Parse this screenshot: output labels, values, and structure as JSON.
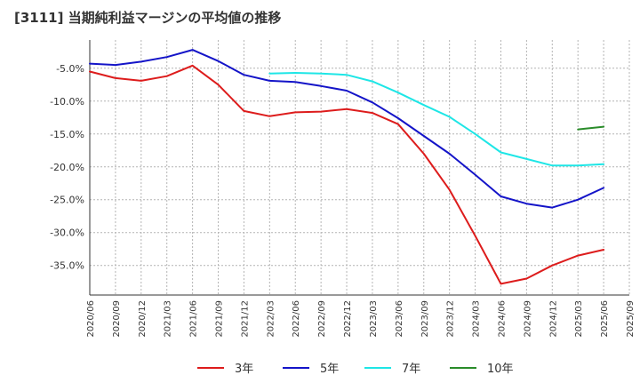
{
  "chart_data": {
    "type": "line",
    "title": "[3111]  当期純利益マージンの平均値の推移",
    "xlabel": "",
    "ylabel": "",
    "ylim": [
      -40,
      0
    ],
    "yticks": [
      -5,
      -10,
      -15,
      -20,
      -25,
      -30,
      -35
    ],
    "ytick_labels": [
      "-5.0%",
      "-10.0%",
      "-15.0%",
      "-20.0%",
      "-25.0%",
      "-30.0%",
      "-35.0%"
    ],
    "grid": true,
    "legend_position": "bottom",
    "categories": [
      "2020/06",
      "2020/09",
      "2020/12",
      "2021/03",
      "2021/06",
      "2021/09",
      "2021/12",
      "2022/03",
      "2022/06",
      "2022/09",
      "2022/12",
      "2023/03",
      "2023/06",
      "2023/09",
      "2023/12",
      "2024/03",
      "2024/06",
      "2024/09",
      "2024/12",
      "2025/03",
      "2025/06",
      "2025/09"
    ],
    "series": [
      {
        "name": "3年",
        "color": "#dd1c1c",
        "values": [
          -5.5,
          -6.5,
          -6.9,
          -6.2,
          -4.6,
          -7.5,
          -11.5,
          -12.3,
          -11.7,
          -11.6,
          -11.2,
          -11.8,
          -13.5,
          -18.0,
          -23.5,
          -30.5,
          -37.8,
          -37.0,
          -35.0,
          -33.5,
          -32.6,
          null
        ]
      },
      {
        "name": "5年",
        "color": "#1414c8",
        "values": [
          -4.3,
          -4.5,
          -4.0,
          -3.3,
          -2.2,
          -3.9,
          -6.0,
          -6.9,
          -7.1,
          -7.7,
          -8.4,
          -10.2,
          -12.6,
          -15.3,
          -18.0,
          -21.2,
          -24.5,
          -25.6,
          -26.2,
          -25.0,
          -23.2,
          null
        ]
      },
      {
        "name": "7年",
        "color": "#1ee6e6",
        "values": [
          null,
          null,
          null,
          null,
          null,
          null,
          null,
          -5.8,
          -5.7,
          -5.8,
          -6.0,
          -7.0,
          -8.7,
          -10.6,
          -12.4,
          -15.0,
          -17.8,
          -18.8,
          -19.8,
          -19.8,
          -19.6,
          null
        ]
      },
      {
        "name": "10年",
        "color": "#2a8c2a",
        "values": [
          null,
          null,
          null,
          null,
          null,
          null,
          null,
          null,
          null,
          null,
          null,
          null,
          null,
          null,
          null,
          null,
          null,
          null,
          null,
          -14.3,
          -13.9,
          null
        ]
      }
    ]
  }
}
